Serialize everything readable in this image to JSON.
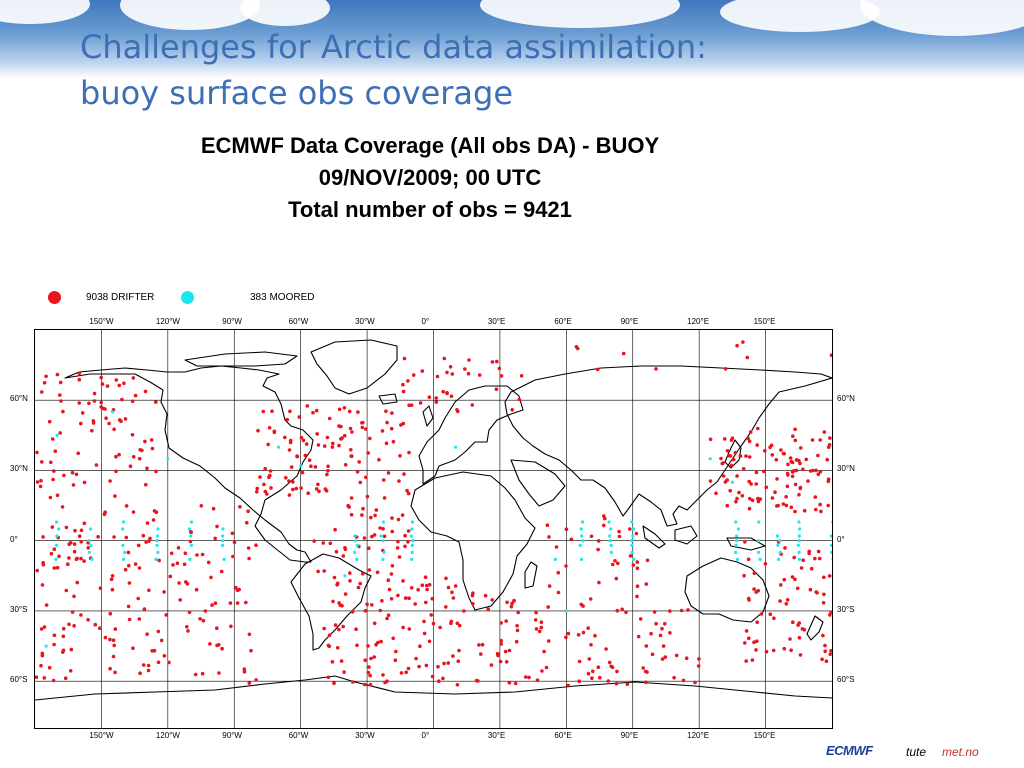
{
  "slide": {
    "title_line1": "Challenges for Arctic data assimilation:",
    "title_line2": "buoy surface obs coverage"
  },
  "chart": {
    "title_line1": "ECMWF Data Coverage (All obs DA) - BUOY",
    "title_line2": "09/NOV/2009; 00 UTC",
    "title_line3": "Total number of obs = 9421"
  },
  "legend": {
    "drifter": {
      "label": "9038 DRIFTER",
      "color": "#e8141e"
    },
    "moored": {
      "label": "383 MOORED",
      "color": "#1ee6f0"
    }
  },
  "map": {
    "projection": "equirectangular",
    "lon_range": [
      -180,
      180
    ],
    "lat_range": [
      -80,
      90
    ],
    "grid": true,
    "lon_labels": [
      "150°W",
      "120°W",
      "90°W",
      "60°W",
      "30°W",
      "0°",
      "30°E",
      "60°E",
      "90°E",
      "120°E",
      "150°E"
    ],
    "lat_labels": [
      "60°N",
      "30°N",
      "0°",
      "30°S",
      "60°S"
    ]
  },
  "footer": {
    "logo_ecmwf": "ECMWF",
    "logo_tute": "tute",
    "logo_metno": "met.no"
  }
}
